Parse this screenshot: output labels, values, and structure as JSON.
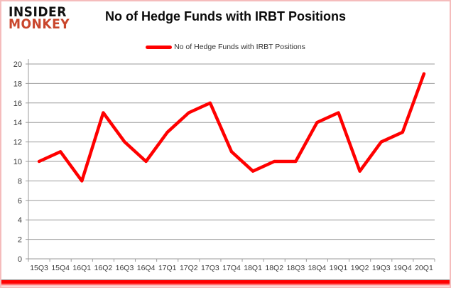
{
  "header": {
    "logo_line1": "INSIDER",
    "logo_line2": "MONKEY",
    "title": "No of Hedge Funds with IRBT Positions"
  },
  "legend": {
    "label": "No of Hedge Funds with IRBT Positions"
  },
  "colors": {
    "line": "#ff0000",
    "grid": "#9b9b9b",
    "axis": "#9b9b9b",
    "axis_text": "#3a3a3a",
    "logo_red": "#c9462c",
    "border_pink": "#f5bcbc",
    "title_text": "#0a0a0a"
  },
  "chart_data": {
    "type": "line",
    "title": "No of Hedge Funds with IRBT Positions",
    "categories": [
      "15Q3",
      "15Q4",
      "16Q1",
      "16Q2",
      "16Q3",
      "16Q4",
      "17Q1",
      "17Q2",
      "17Q3",
      "17Q4",
      "18Q1",
      "18Q2",
      "18Q3",
      "18Q4",
      "19Q1",
      "19Q2",
      "19Q3",
      "19Q4",
      "20Q1"
    ],
    "series": [
      {
        "name": "No of Hedge Funds with IRBT Positions",
        "color": "#ff0000",
        "values": [
          10,
          11,
          8,
          15,
          12,
          10,
          13,
          15,
          16,
          11,
          9,
          10,
          10,
          14,
          15,
          9,
          12,
          13,
          19
        ]
      }
    ],
    "xlabel": "",
    "ylabel": "",
    "ylim": [
      0,
      20
    ],
    "yticks": [
      0,
      2,
      4,
      6,
      8,
      10,
      12,
      14,
      16,
      18,
      20
    ],
    "grid": true,
    "legend_position": "top-center"
  }
}
